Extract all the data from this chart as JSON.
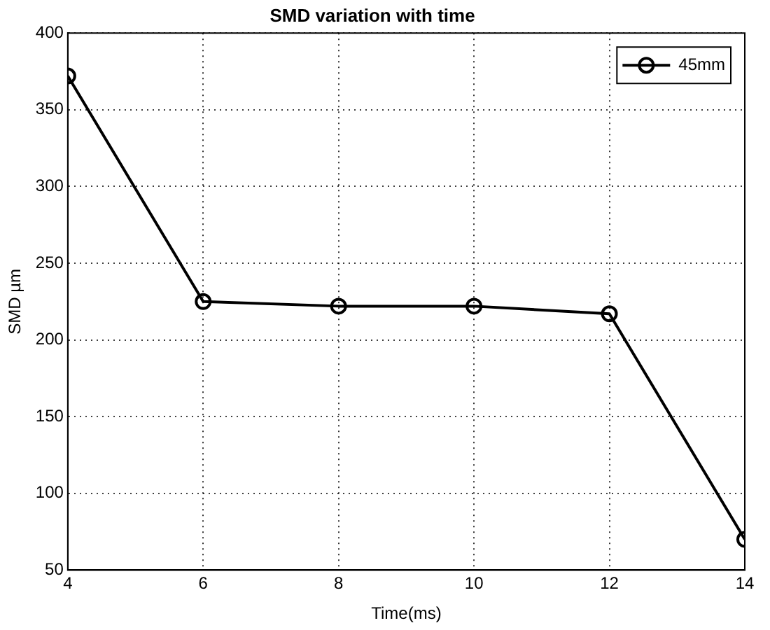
{
  "chart_data": {
    "type": "line",
    "title": "SMD variation with time",
    "xlabel": "Time(ms)",
    "ylabel": "SMD µm",
    "x": [
      4,
      6,
      8,
      10,
      12,
      14
    ],
    "series": [
      {
        "name": "45mm",
        "color": "#000000",
        "values": [
          372,
          225,
          222,
          222,
          217,
          70
        ]
      }
    ],
    "xlim": [
      4,
      14
    ],
    "xticks": [
      4,
      6,
      8,
      10,
      12,
      14
    ],
    "ylim": [
      50,
      400
    ],
    "yticks": [
      50,
      100,
      150,
      200,
      250,
      300,
      350,
      400
    ],
    "grid": true,
    "legend": "top right",
    "marker": "circle",
    "line_style": "solid"
  }
}
